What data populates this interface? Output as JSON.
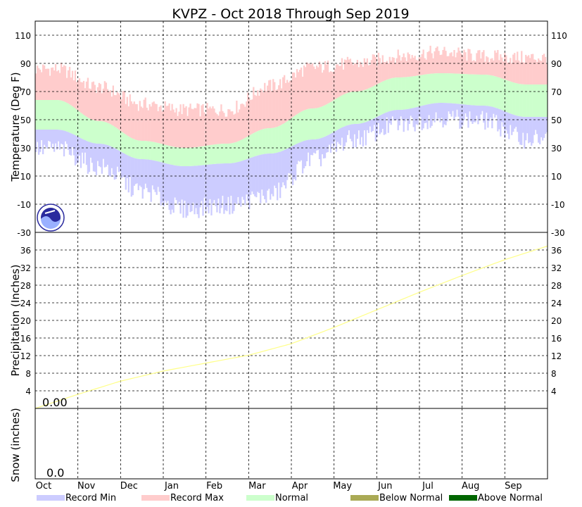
{
  "chart_data": {
    "type": "area",
    "title": "KVPZ - Oct 2018 Through Sep 2019",
    "months": [
      "Oct",
      "Nov",
      "Dec",
      "Jan",
      "Feb",
      "Mar",
      "Apr",
      "May",
      "Jun",
      "Jul",
      "Aug",
      "Sep"
    ],
    "temperature": {
      "ylabel": "Temperature (Deg F)",
      "ylim": [
        -30,
        120
      ],
      "ticks": [
        -30,
        -10,
        10,
        30,
        50,
        70,
        90,
        110
      ],
      "tick_labels": [
        "-30",
        "-10",
        "10",
        "30",
        "50",
        "70",
        "90",
        "110"
      ],
      "normal_low_monthly": [
        43,
        33,
        22,
        17,
        19,
        26,
        36,
        47,
        57,
        62,
        60,
        52
      ],
      "normal_high_monthly": [
        64,
        49,
        35,
        30,
        33,
        44,
        58,
        70,
        80,
        83,
        82,
        75
      ],
      "record_low_monthly": [
        28,
        15,
        -2,
        -15,
        -12,
        -5,
        20,
        35,
        45,
        50,
        48,
        35
      ],
      "record_high_monthly": [
        87,
        74,
        62,
        58,
        58,
        75,
        88,
        91,
        96,
        99,
        96,
        95
      ]
    },
    "precipitation": {
      "ylabel": "Precipitation (Inches)",
      "ylim": [
        0,
        40
      ],
      "ticks": [
        4,
        8,
        12,
        16,
        20,
        24,
        28,
        32,
        36
      ],
      "tick_labels": [
        "4",
        "8",
        "12",
        "16",
        "20",
        "24",
        "28",
        "32",
        "36"
      ],
      "normal_cumulative_monthly": [
        3.2,
        6.2,
        8.5,
        10.3,
        12.1,
        14.7,
        18.4,
        22.4,
        26.4,
        30.2,
        33.8,
        36.9
      ],
      "start_label": "0.00"
    },
    "snow": {
      "ylabel": "Snow (inches)",
      "start_label": "0.0"
    },
    "legend": [
      {
        "label": "Record Min",
        "color": "#ccccff"
      },
      {
        "label": "Record Max",
        "color": "#ffcccc"
      },
      {
        "label": "Normal",
        "color": "#ccffcc"
      },
      {
        "label": "Below Normal",
        "color": "#aaaa55"
      },
      {
        "label": "Above Normal",
        "color": "#006600"
      }
    ],
    "colors": {
      "record_min": "#ccccff",
      "record_max": "#ffcccc",
      "normal": "#ccffcc",
      "precip_normal": "#ffff88"
    }
  }
}
